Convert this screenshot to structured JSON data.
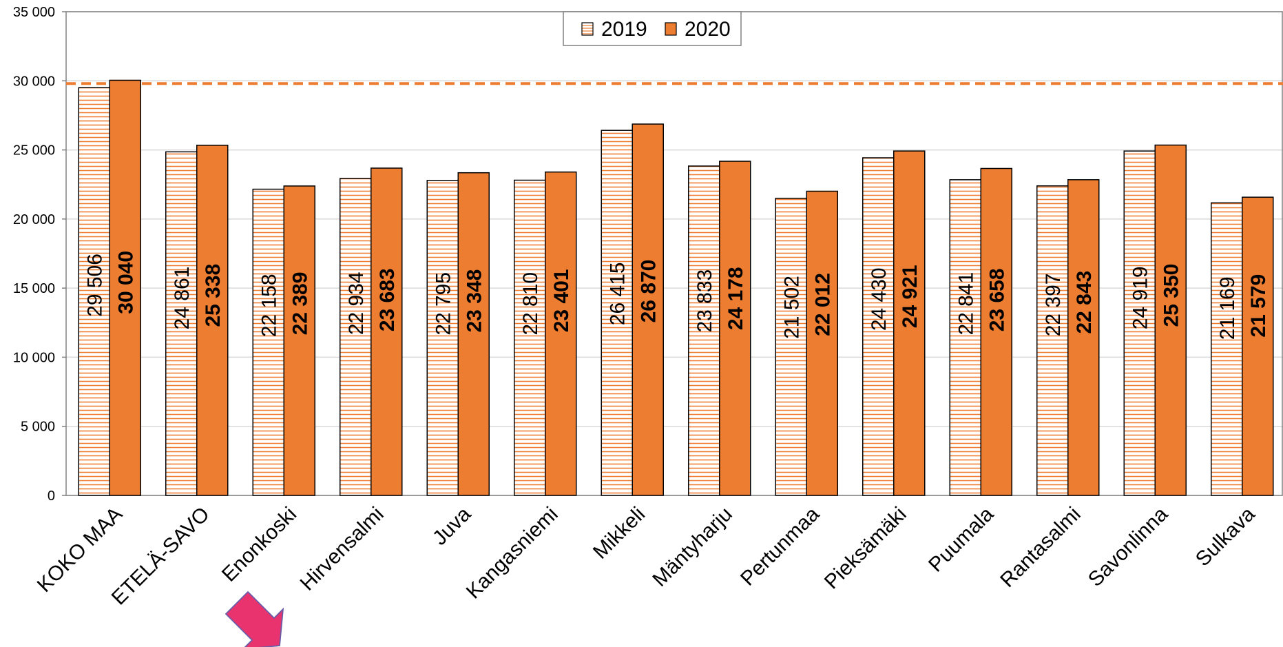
{
  "chart_data": {
    "type": "bar",
    "categories": [
      "KOKO MAA",
      "ETELÄ-SAVO",
      "Enonkoski",
      "Hirvensalmi",
      "Juva",
      "Kangasniemi",
      "Mikkeli",
      "Mäntyharju",
      "Pertunmaa",
      "Pieksämäki",
      "Puumala",
      "Rantasalmi",
      "Savonlinna",
      "Sulkava"
    ],
    "series": [
      {
        "name": "2019",
        "values": [
          29506,
          24861,
          22158,
          22934,
          22795,
          22810,
          26415,
          23833,
          21502,
          24430,
          22841,
          22397,
          24919,
          21169
        ],
        "labels": [
          "29 506",
          "24 861",
          "22 158",
          "22 934",
          "22 795",
          "22 810",
          "26 415",
          "23 833",
          "21 502",
          "24 430",
          "22 841",
          "22 397",
          "24 919",
          "21 169"
        ],
        "color": "#ED7D31",
        "pattern": "horizontal-stripes"
      },
      {
        "name": "2020",
        "values": [
          30040,
          25338,
          22389,
          23683,
          23348,
          23401,
          26870,
          24178,
          22012,
          24921,
          23658,
          22843,
          25350,
          21579
        ],
        "labels": [
          "30 040",
          "25 338",
          "22 389",
          "23 683",
          "23 348",
          "23 401",
          "26 870",
          "24 178",
          "22 012",
          "24 921",
          "23 658",
          "22 843",
          "25 350",
          "21 579"
        ],
        "color": "#ED7D31",
        "pattern": "solid"
      }
    ],
    "reference_line": {
      "value": 29800,
      "color": "#ED7D31",
      "style": "dashed"
    },
    "yticks": [
      0,
      5000,
      10000,
      15000,
      20000,
      25000,
      30000,
      35000
    ],
    "ytick_labels": [
      "0",
      "5 000",
      "10 000",
      "15 000",
      "20 000",
      "25 000",
      "30 000",
      "35 000"
    ],
    "ylim": [
      0,
      35000
    ],
    "grid": true,
    "legend_position": "top-center",
    "annotation": {
      "type": "arrow",
      "target_category": "Hirvensalmi",
      "color": "#E8336E"
    },
    "title": "",
    "xlabel": "",
    "ylabel": ""
  }
}
